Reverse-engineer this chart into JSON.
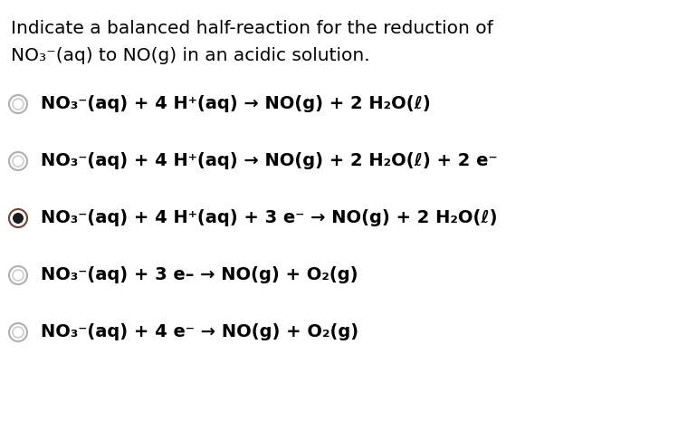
{
  "background_color": "#ffffff",
  "header_line1": "Indicate a balanced half-reaction for the reduction of",
  "header_line2": "NO₃⁻(aq) to NO(g) in an acidic solution.",
  "options": [
    {
      "text": "NO₃⁻(aq) + 4 H⁺(aq) → NO(g) + 2 H₂O(ℓ)",
      "selected": false
    },
    {
      "text": "NO₃⁻(aq) + 4 H⁺(aq) → NO(g) + 2 H₂O(ℓ) + 2 e⁻",
      "selected": false
    },
    {
      "text": "NO₃⁻(aq) + 4 H⁺(aq) + 3 e⁻ → NO(g) + 2 H₂O(ℓ)",
      "selected": true
    },
    {
      "text": "NO₃⁻(aq) + 3 e– → NO(g) + O₂(g)",
      "selected": false
    },
    {
      "text": "NO₃⁻(aq) + 4 e⁻ → NO(g) + O₂(g)",
      "selected": false
    }
  ],
  "font_size_header": 14.5,
  "font_size_options": 14.0,
  "text_color": "#000000",
  "radio_edge_color": "#aaaaaa",
  "radio_selected_fill": "#1a1a1a",
  "radio_selected_edge": "#6b3a2a"
}
